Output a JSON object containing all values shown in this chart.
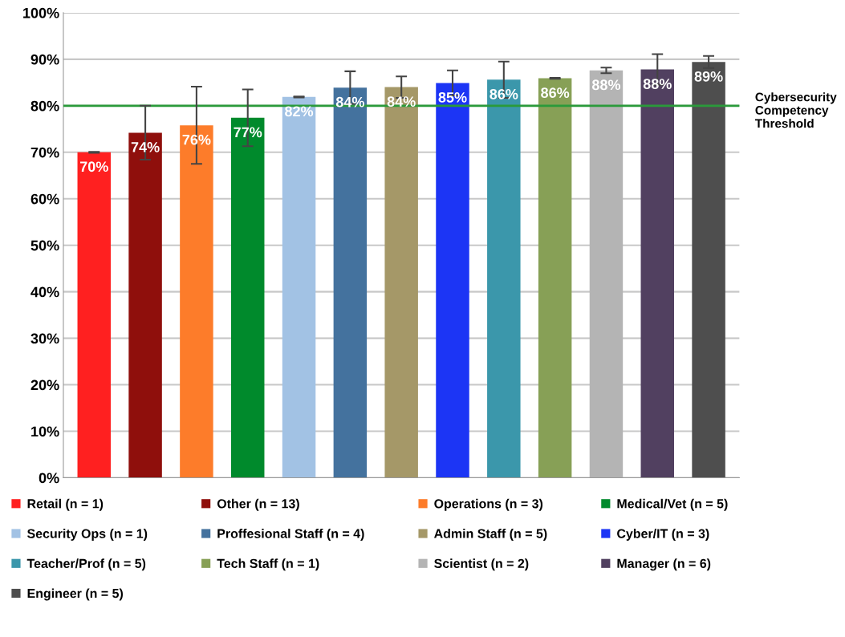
{
  "chart_data": {
    "type": "bar",
    "categories": [
      null,
      null,
      null,
      null,
      null,
      null,
      null,
      null,
      null,
      null,
      null,
      null,
      null
    ],
    "series": [
      {
        "name": "Retail (n = 1)",
        "color": "#ff2020",
        "values": [
          70,
          null,
          null,
          null,
          null,
          null,
          null,
          null,
          null,
          null,
          null,
          null,
          null
        ],
        "errors": [
          0.1,
          null,
          null,
          null,
          null,
          null,
          null,
          null,
          null,
          null,
          null,
          null,
          null
        ],
        "value_labels": [
          "70%",
          null,
          null,
          null,
          null,
          null,
          null,
          null,
          null,
          null,
          null,
          null,
          null
        ]
      },
      {
        "name": "Other (n = 13)",
        "color": "#8f0f0c",
        "values": [
          null,
          74.2,
          null,
          null,
          null,
          null,
          null,
          null,
          null,
          null,
          null,
          null,
          null
        ],
        "errors": [
          null,
          5.8,
          null,
          null,
          null,
          null,
          null,
          null,
          null,
          null,
          null,
          null,
          null
        ],
        "value_labels": [
          null,
          "74%",
          null,
          null,
          null,
          null,
          null,
          null,
          null,
          null,
          null,
          null,
          null
        ]
      },
      {
        "name": "Operations (n = 3)",
        "color": "#fd7c2a",
        "values": [
          null,
          null,
          75.8,
          null,
          null,
          null,
          null,
          null,
          null,
          null,
          null,
          null,
          null
        ],
        "errors": [
          null,
          null,
          8.3,
          null,
          null,
          null,
          null,
          null,
          null,
          null,
          null,
          null,
          null
        ],
        "value_labels": [
          null,
          null,
          "76%",
          null,
          null,
          null,
          null,
          null,
          null,
          null,
          null,
          null,
          null
        ]
      },
      {
        "name": "Medical/Vet (n = 5)",
        "color": "#008a2c",
        "values": [
          null,
          null,
          null,
          77.4,
          null,
          null,
          null,
          null,
          null,
          null,
          null,
          null,
          null
        ],
        "errors": [
          null,
          null,
          null,
          6.1,
          null,
          null,
          null,
          null,
          null,
          null,
          null,
          null,
          null
        ],
        "value_labels": [
          null,
          null,
          null,
          "77%",
          null,
          null,
          null,
          null,
          null,
          null,
          null,
          null,
          null
        ]
      },
      {
        "name": "Security Ops (n = 1)",
        "color": "#a2c2e4",
        "values": [
          null,
          null,
          null,
          null,
          81.9,
          null,
          null,
          null,
          null,
          null,
          null,
          null,
          null
        ],
        "errors": [
          null,
          null,
          null,
          null,
          0.1,
          null,
          null,
          null,
          null,
          null,
          null,
          null,
          null
        ],
        "value_labels": [
          null,
          null,
          null,
          null,
          "82%",
          null,
          null,
          null,
          null,
          null,
          null,
          null,
          null
        ]
      },
      {
        "name": "Proffesional Staff (n = 4)",
        "color": "#44729e",
        "values": [
          null,
          null,
          null,
          null,
          null,
          83.9,
          null,
          null,
          null,
          null,
          null,
          null,
          null
        ],
        "errors": [
          null,
          null,
          null,
          null,
          null,
          3.5,
          null,
          null,
          null,
          null,
          null,
          null,
          null
        ],
        "value_labels": [
          null,
          null,
          null,
          null,
          null,
          "84%",
          null,
          null,
          null,
          null,
          null,
          null,
          null
        ]
      },
      {
        "name": "Admin Staff (n = 5)",
        "color": "#a59868",
        "values": [
          null,
          null,
          null,
          null,
          null,
          null,
          84.0,
          null,
          null,
          null,
          null,
          null,
          null
        ],
        "errors": [
          null,
          null,
          null,
          null,
          null,
          null,
          2.3,
          null,
          null,
          null,
          null,
          null,
          null
        ],
        "value_labels": [
          null,
          null,
          null,
          null,
          null,
          null,
          "84%",
          null,
          null,
          null,
          null,
          null,
          null
        ]
      },
      {
        "name": "Cyber/IT (n = 3)",
        "color": "#1c35f5",
        "values": [
          null,
          null,
          null,
          null,
          null,
          null,
          null,
          84.9,
          null,
          null,
          null,
          null,
          null
        ],
        "errors": [
          null,
          null,
          null,
          null,
          null,
          null,
          null,
          2.7,
          null,
          null,
          null,
          null,
          null
        ],
        "value_labels": [
          null,
          null,
          null,
          null,
          null,
          null,
          null,
          "85%",
          null,
          null,
          null,
          null,
          null
        ]
      },
      {
        "name": "Teacher/Prof (n = 5)",
        "color": "#3b97ab",
        "values": [
          null,
          null,
          null,
          null,
          null,
          null,
          null,
          null,
          85.6,
          null,
          null,
          null,
          null
        ],
        "errors": [
          null,
          null,
          null,
          null,
          null,
          null,
          null,
          null,
          3.9,
          null,
          null,
          null,
          null
        ],
        "value_labels": [
          null,
          null,
          null,
          null,
          null,
          null,
          null,
          null,
          "86%",
          null,
          null,
          null,
          null
        ]
      },
      {
        "name": "Tech Staff (n = 1)",
        "color": "#87a056",
        "values": [
          null,
          null,
          null,
          null,
          null,
          null,
          null,
          null,
          null,
          85.9,
          null,
          null,
          null
        ],
        "errors": [
          null,
          null,
          null,
          null,
          null,
          null,
          null,
          null,
          null,
          0.1,
          null,
          null,
          null
        ],
        "value_labels": [
          null,
          null,
          null,
          null,
          null,
          null,
          null,
          null,
          null,
          "86%",
          null,
          null,
          null
        ]
      },
      {
        "name": "Scientist (n = 2)",
        "color": "#b4b4b4",
        "values": [
          null,
          null,
          null,
          null,
          null,
          null,
          null,
          null,
          null,
          null,
          87.6,
          null,
          null
        ],
        "errors": [
          null,
          null,
          null,
          null,
          null,
          null,
          null,
          null,
          null,
          null,
          0.6,
          null,
          null
        ],
        "value_labels": [
          null,
          null,
          null,
          null,
          null,
          null,
          null,
          null,
          null,
          null,
          "88%",
          null,
          null
        ]
      },
      {
        "name": "Manager (n = 6)",
        "color": "#514060",
        "values": [
          null,
          null,
          null,
          null,
          null,
          null,
          null,
          null,
          null,
          null,
          null,
          87.8,
          null
        ],
        "errors": [
          null,
          null,
          null,
          null,
          null,
          null,
          null,
          null,
          null,
          null,
          null,
          3.3,
          null
        ],
        "value_labels": [
          null,
          null,
          null,
          null,
          null,
          null,
          null,
          null,
          null,
          null,
          null,
          "88%",
          null
        ]
      },
      {
        "name": "Engineer (n = 5)",
        "color": "#4e4e4e",
        "values": [
          null,
          null,
          null,
          null,
          null,
          null,
          null,
          null,
          null,
          null,
          null,
          null,
          89.4
        ],
        "errors": [
          null,
          null,
          null,
          null,
          null,
          null,
          null,
          null,
          null,
          null,
          null,
          null,
          1.3
        ],
        "value_labels": [
          null,
          null,
          null,
          null,
          null,
          null,
          null,
          null,
          null,
          null,
          null,
          null,
          "89%"
        ]
      }
    ],
    "ylim": [
      0,
      100
    ],
    "yticks": [
      {
        "value": 0,
        "label": "0%"
      },
      {
        "value": 10,
        "label": "10%"
      },
      {
        "value": 20,
        "label": "20%"
      },
      {
        "value": 30,
        "label": "30%"
      },
      {
        "value": 40,
        "label": "40%"
      },
      {
        "value": 50,
        "label": "50%"
      },
      {
        "value": 60,
        "label": "60%"
      },
      {
        "value": 70,
        "label": "70%"
      },
      {
        "value": 80,
        "label": "80%"
      },
      {
        "value": 90,
        "label": "90%"
      },
      {
        "value": 100,
        "label": "100%"
      }
    ],
    "ref_lines": [
      {
        "axis": "y",
        "value": 80,
        "label": "Cybersecurity\nCompetency\nThreshold",
        "color": "#2a9a3a",
        "line_style": "solid"
      }
    ],
    "grid": "y",
    "legend": "bottom",
    "tick_labels": "y"
  }
}
